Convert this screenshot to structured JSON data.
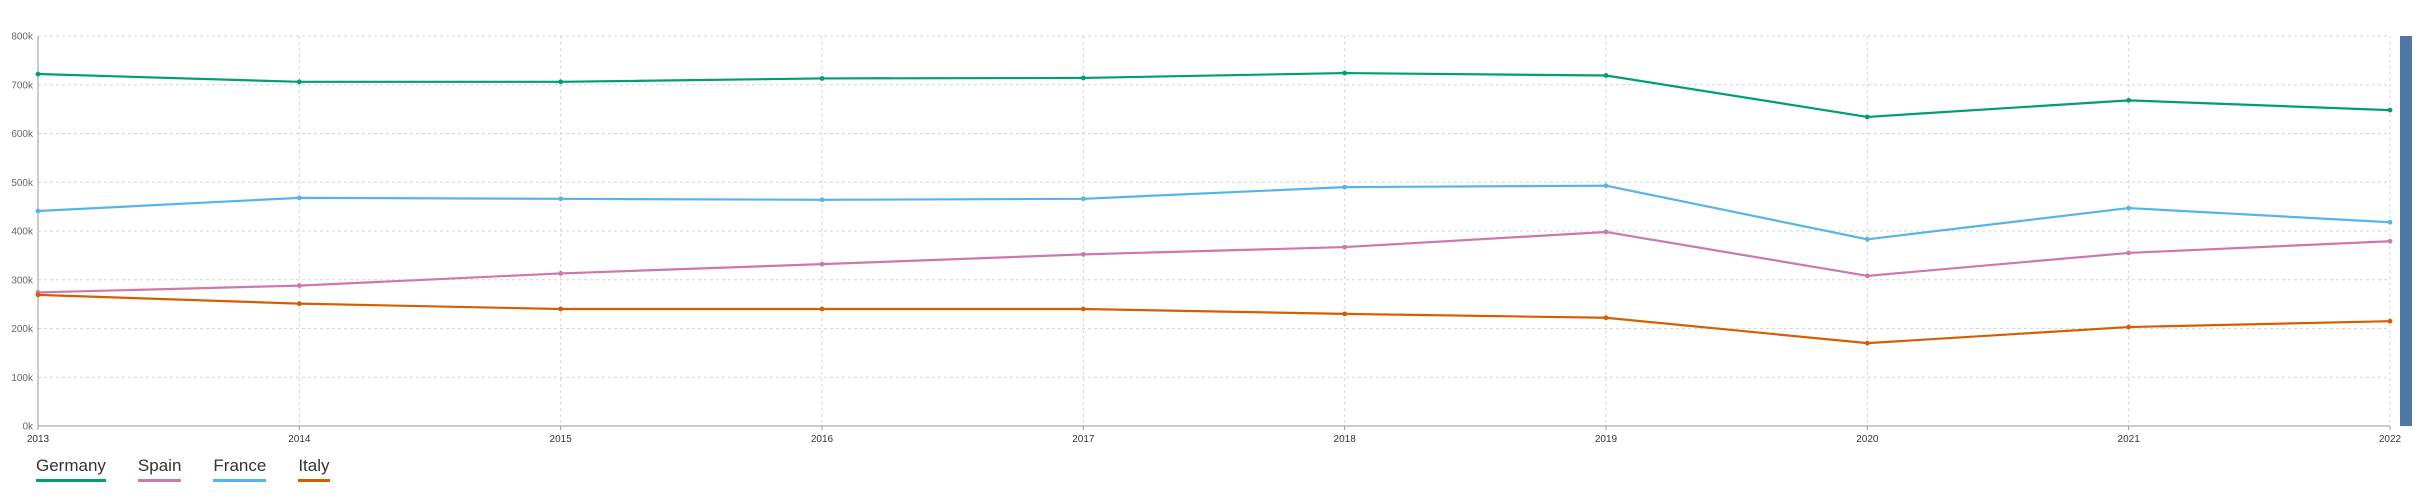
{
  "chart_data": {
    "type": "line",
    "x": [
      "2013",
      "2014",
      "2015",
      "2016",
      "2017",
      "2018",
      "2019",
      "2020",
      "2021",
      "2022"
    ],
    "ylim": [
      0,
      800000
    ],
    "yticks": [
      {
        "value": 0,
        "label": "0k"
      },
      {
        "value": 100000,
        "label": "100k"
      },
      {
        "value": 200000,
        "label": "200k"
      },
      {
        "value": 300000,
        "label": "300k"
      },
      {
        "value": 400000,
        "label": "400k"
      },
      {
        "value": 500000,
        "label": "500k"
      },
      {
        "value": 600000,
        "label": "600k"
      },
      {
        "value": 700000,
        "label": "700k"
      },
      {
        "value": 800000,
        "label": "800k"
      }
    ],
    "grid": true,
    "legend_position": "bottom-left",
    "series": [
      {
        "name": "Germany",
        "color": "#009e73",
        "values": [
          722000,
          706000,
          706000,
          713000,
          714000,
          724000,
          719000,
          634000,
          668000,
          648000
        ]
      },
      {
        "name": "Spain",
        "color": "#cc79a7",
        "values": [
          274000,
          288000,
          313000,
          332000,
          352000,
          367000,
          398000,
          308000,
          355000,
          379000
        ]
      },
      {
        "name": "France",
        "color": "#56b4e9",
        "values": [
          441000,
          468000,
          466000,
          464000,
          466000,
          490000,
          493000,
          383000,
          447000,
          418000
        ]
      },
      {
        "name": "Italy",
        "color": "#d55e00",
        "values": [
          269000,
          251000,
          240000,
          240000,
          240000,
          230000,
          222000,
          170000,
          203000,
          215000
        ]
      }
    ],
    "scrollbar_color": "#4e79a7"
  }
}
